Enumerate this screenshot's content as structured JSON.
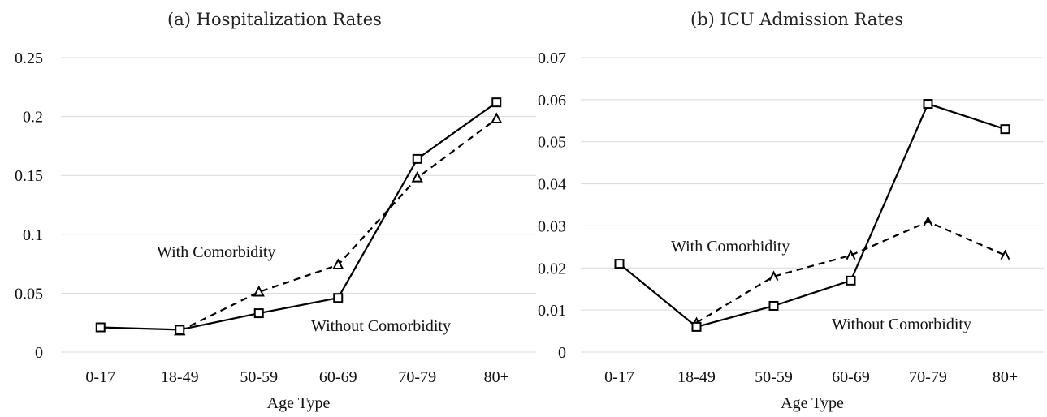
{
  "chart_data": [
    {
      "type": "line",
      "title": "(a) Hospitalization Rates",
      "xlabel": "Age Type",
      "ylabel": "",
      "categories": [
        "0-17",
        "18-49",
        "50-59",
        "60-69",
        "70-79",
        "80+"
      ],
      "ylim": [
        0,
        0.25
      ],
      "yticks": [
        "0",
        "0.05",
        "0.1",
        "0.15",
        "0.2",
        "0.25"
      ],
      "grid": true,
      "series": [
        {
          "name": "Without Comorbidity",
          "style": "solid",
          "marker": "square",
          "values": [
            0.021,
            0.019,
            0.033,
            0.046,
            0.164,
            0.212
          ]
        },
        {
          "name": "With Comorbidity",
          "style": "dashed",
          "marker": "triangle",
          "values": [
            null,
            0.018,
            0.051,
            0.074,
            0.148,
            0.198
          ]
        }
      ]
    },
    {
      "type": "line",
      "title": "(b) ICU Admission Rates",
      "xlabel": "Age Type",
      "ylabel": "",
      "categories": [
        "0-17",
        "18-49",
        "50-59",
        "60-69",
        "70-79",
        "80+"
      ],
      "ylim": [
        0,
        0.07
      ],
      "yticks": [
        "0",
        "0.01",
        "0.02",
        "0.03",
        "0.04",
        "0.05",
        "0.06",
        "0.07"
      ],
      "grid": true,
      "series": [
        {
          "name": "Without Comorbidity",
          "style": "solid",
          "marker": "square",
          "values": [
            0.021,
            0.006,
            0.011,
            0.017,
            0.059,
            0.053
          ]
        },
        {
          "name": "With Comorbidity",
          "style": "dashed",
          "marker": "caret",
          "values": [
            null,
            0.007,
            0.018,
            0.023,
            0.031,
            0.023
          ]
        }
      ]
    }
  ],
  "line_color": "#000000"
}
